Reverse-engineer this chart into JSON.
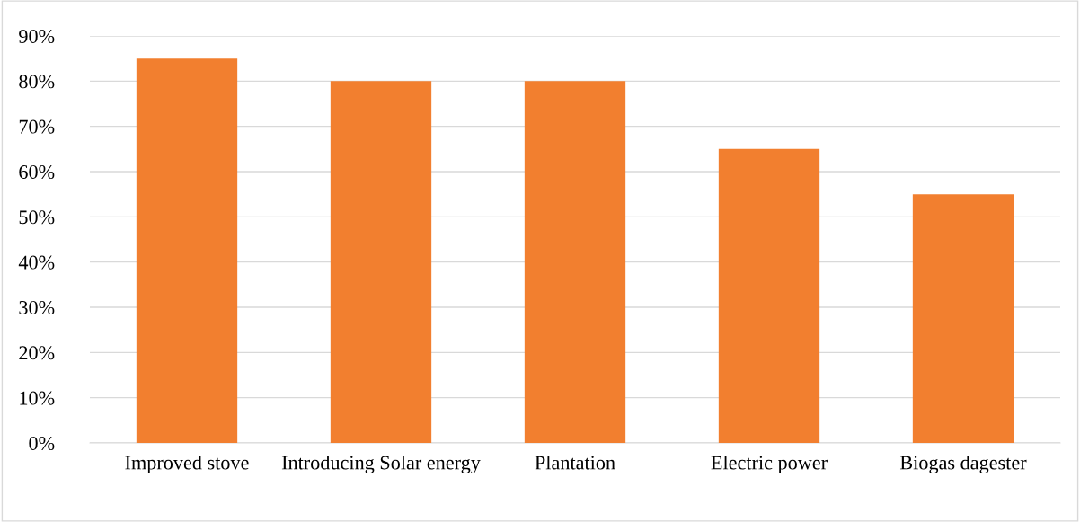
{
  "chart_data": {
    "type": "bar",
    "categories": [
      "Improved stove",
      "Introducing Solar energy",
      "Plantation",
      "Electric power",
      "Biogas dagester"
    ],
    "values": [
      85,
      80,
      80,
      65,
      55
    ],
    "color": "#f27f2f",
    "ylim": [
      0,
      90
    ],
    "yticks": [
      {
        "value": 0,
        "label": "0%"
      },
      {
        "value": 10,
        "label": "10%"
      },
      {
        "value": 20,
        "label": "20%"
      },
      {
        "value": 30,
        "label": "30%"
      },
      {
        "value": 40,
        "label": "40%"
      },
      {
        "value": 50,
        "label": "50%"
      },
      {
        "value": 60,
        "label": "60%"
      },
      {
        "value": 70,
        "label": "70%"
      },
      {
        "value": 80,
        "label": "80%"
      },
      {
        "value": 90,
        "label": "90%"
      }
    ],
    "grid": "y",
    "legend": false
  }
}
